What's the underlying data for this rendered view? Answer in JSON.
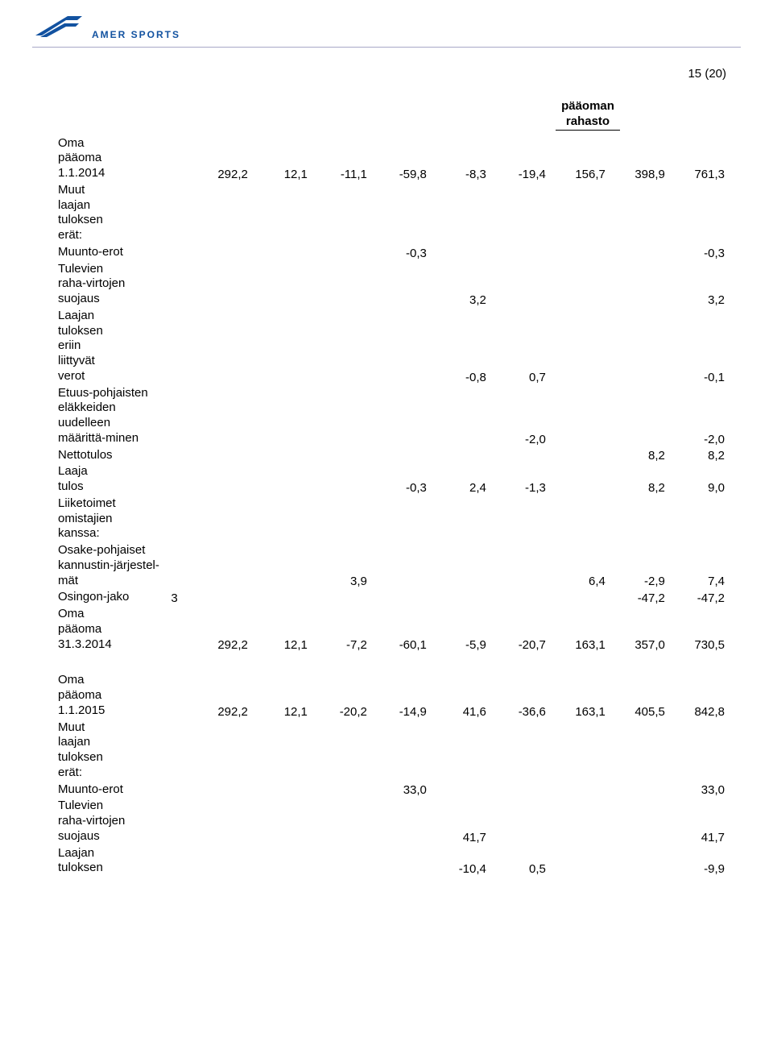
{
  "page_number": "15 (20)",
  "logo": {
    "brand": "AMER SPORTS",
    "color": "#1252a0"
  },
  "column_label": {
    "l1": "pääoman",
    "l2": "rahasto"
  },
  "rows1": [
    {
      "label": "Oma pääoma 1.1.2014",
      "v": [
        "292,2",
        "12,1",
        "-11,1",
        "-59,8",
        "-8,3",
        "-19,4",
        "156,7",
        "398,9",
        "761,3"
      ]
    },
    {
      "label": "Muut laajan tuloksen erät:"
    },
    {
      "label": "Muunto-erot",
      "v": [
        "",
        "",
        "",
        "-0,3",
        "",
        "",
        "",
        "",
        "-0,3"
      ]
    },
    {
      "label": "Tulevien raha-virtojen suojaus",
      "v": [
        "",
        "",
        "",
        "",
        "3,2",
        "",
        "",
        "",
        "3,2"
      ]
    },
    {
      "label": "Laajan tuloksen eriin liittyvät verot",
      "v": [
        "",
        "",
        "",
        "",
        "-0,8",
        "0,7",
        "",
        "",
        "-0,1"
      ]
    },
    {
      "label": "Etuus-pohjaisten eläkkeiden uudelleen määrittä-minen",
      "v": [
        "",
        "",
        "",
        "",
        "",
        "-2,0",
        "",
        "",
        "-2,0"
      ]
    },
    {
      "label": "Nettotulos",
      "v": [
        "",
        "",
        "",
        "",
        "",
        "",
        "",
        "8,2",
        "8,2"
      ]
    },
    {
      "label": "Laaja tulos",
      "v": [
        "",
        "",
        "",
        "-0,3",
        "2,4",
        "-1,3",
        "",
        "8,2",
        "9,0"
      ]
    },
    {
      "label": "Liiketoimet omistajien kanssa:"
    },
    {
      "label": "Osake-pohjaiset kannustin-järjestel-mät",
      "v": [
        "",
        "",
        "3,9",
        "",
        "",
        "",
        "6,4",
        "-2,9",
        "7,4"
      ]
    },
    {
      "label": "Osingon-jako",
      "note": "3",
      "v": [
        "",
        "",
        "",
        "",
        "",
        "",
        "",
        "-47,2",
        "-47,2"
      ]
    },
    {
      "label": "Oma pääoma 31.3.2014",
      "v": [
        "292,2",
        "12,1",
        "-7,2",
        "-60,1",
        "-5,9",
        "-20,7",
        "163,1",
        "357,0",
        "730,5"
      ]
    }
  ],
  "rows2": [
    {
      "label": "Oma pääoma 1.1.2015",
      "v": [
        "292,2",
        "12,1",
        "-20,2",
        "-14,9",
        "41,6",
        "-36,6",
        "163,1",
        "405,5",
        "842,8"
      ]
    },
    {
      "label": "Muut laajan tuloksen erät:"
    },
    {
      "label": "Muunto-erot",
      "v": [
        "",
        "",
        "",
        "33,0",
        "",
        "",
        "",
        "",
        "33,0"
      ]
    },
    {
      "label": "Tulevien raha-virtojen suojaus",
      "v": [
        "",
        "",
        "",
        "",
        "41,7",
        "",
        "",
        "",
        "41,7"
      ]
    },
    {
      "label": "Laajan tuloksen",
      "v": [
        "",
        "",
        "",
        "",
        "-10,4",
        "0,5",
        "",
        "",
        "-9,9"
      ]
    }
  ]
}
